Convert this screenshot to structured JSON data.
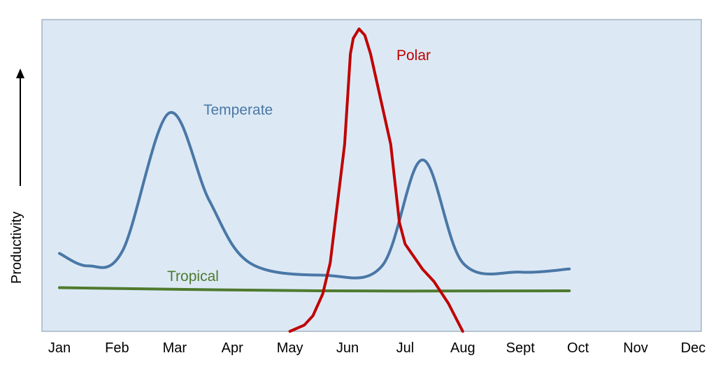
{
  "chart_data": {
    "type": "line",
    "title": "",
    "xlabel": "",
    "ylabel": "Productivity",
    "months": [
      "Jan",
      "Feb",
      "Mar",
      "Apr",
      "May",
      "Jun",
      "Jul",
      "Aug",
      "Sept",
      "Oct",
      "Nov",
      "Dec"
    ],
    "ylim": [
      0,
      100
    ],
    "grid": false,
    "legend": "inline labels",
    "series": [
      {
        "name": "Temperate",
        "color": "#4a77a6",
        "points": [
          [
            0,
            25
          ],
          [
            0.5,
            21
          ],
          [
            1.1,
            26
          ],
          [
            1.9,
            70
          ],
          [
            2.6,
            42
          ],
          [
            3.3,
            22
          ],
          [
            4.6,
            18
          ],
          [
            5.6,
            21
          ],
          [
            6.3,
            55
          ],
          [
            7,
            22
          ],
          [
            8,
            19
          ],
          [
            8.85,
            20
          ]
        ]
      },
      {
        "name": "Tropical",
        "color": "#4f7a2e",
        "points": [
          [
            0,
            14
          ],
          [
            4.5,
            13
          ],
          [
            8.85,
            13
          ]
        ]
      },
      {
        "name": "Polar",
        "color": "#c00000",
        "points": [
          [
            4.0,
            0
          ],
          [
            4.25,
            2
          ],
          [
            4.4,
            5
          ],
          [
            4.57,
            12
          ],
          [
            4.7,
            22
          ],
          [
            4.95,
            60
          ],
          [
            5.05,
            89
          ],
          [
            5.1,
            94
          ],
          [
            5.2,
            97
          ],
          [
            5.3,
            95
          ],
          [
            5.4,
            89
          ],
          [
            5.75,
            60
          ],
          [
            5.9,
            35
          ],
          [
            6.0,
            28
          ],
          [
            6.3,
            20
          ],
          [
            6.5,
            16
          ],
          [
            6.75,
            9
          ],
          [
            7.0,
            0
          ]
        ]
      }
    ]
  }
}
